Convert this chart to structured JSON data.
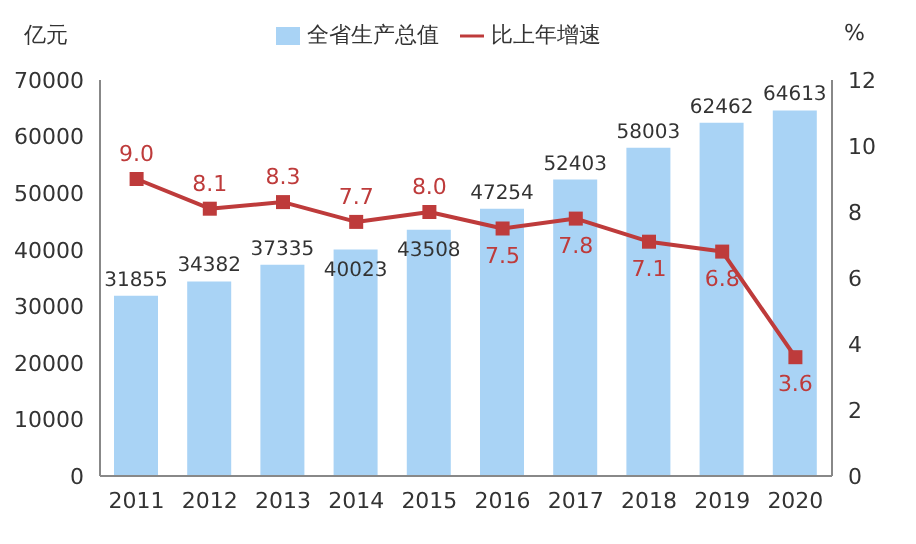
{
  "chart_data": {
    "type": "bar",
    "categories": [
      "2011",
      "2012",
      "2013",
      "2014",
      "2015",
      "2016",
      "2017",
      "2018",
      "2019",
      "2020"
    ],
    "series": [
      {
        "name": "全省生产总值",
        "color": "#a9d3f5",
        "values": [
          31855,
          34382,
          37335,
          40023,
          43508,
          47254,
          52403,
          58003,
          62462,
          64613
        ]
      },
      {
        "name": "比上年增速",
        "type": "line",
        "axis": "y2",
        "color": "#be3b3b",
        "values": [
          9.0,
          8.1,
          8.3,
          7.7,
          8.0,
          7.5,
          7.8,
          7.1,
          6.8,
          3.6
        ],
        "value_labels": [
          "9.0",
          "8.1",
          "8.3",
          "7.7",
          "8.0",
          "7.5",
          "7.8",
          "7.1",
          "6.8",
          "3.6"
        ]
      }
    ],
    "ylabel": "亿元",
    "y2label": "%",
    "ylim": [
      0,
      70000
    ],
    "yticks": [
      0,
      10000,
      20000,
      30000,
      40000,
      50000,
      60000,
      70000
    ],
    "y2lim": [
      0,
      12
    ],
    "y2ticks": [
      0,
      2,
      4,
      6,
      8,
      10,
      12
    ],
    "data_labels": true,
    "legend": "top",
    "marker": "square",
    "line_style": "solid"
  }
}
